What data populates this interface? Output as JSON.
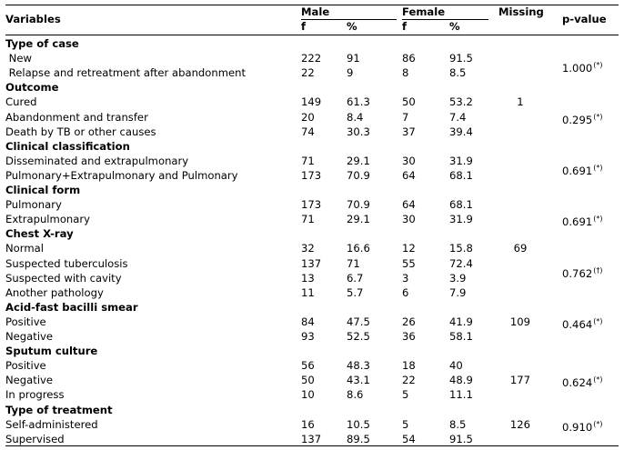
{
  "header": {
    "variables": "Variables",
    "male": "Male",
    "female": "Female",
    "missing": "Missing",
    "pvalue": "p-value",
    "f": "f",
    "pct": "%"
  },
  "rows": [
    {
      "label": "Type of case",
      "section": true
    },
    {
      "label": " New",
      "mf": "222",
      "mp": "91",
      "ff": "86",
      "fp": "91.5"
    },
    {
      "label": " Relapse and retreatment after abandonment",
      "mf": "22",
      "mp": "9",
      "ff": "8",
      "fp": "8.5"
    },
    {
      "label": "Outcome",
      "section": true
    },
    {
      "label": "Cured",
      "mf": "149",
      "mp": "61.3",
      "ff": "50",
      "fp": "53.2",
      "miss": "1"
    },
    {
      "label": "Abandonment and transfer",
      "mf": "20",
      "mp": "8.4",
      "ff": "7",
      "fp": "7.4"
    },
    {
      "label": "Death by TB or other causes",
      "mf": "74",
      "mp": "30.3",
      "ff": "37",
      "fp": "39.4"
    },
    {
      "label": "Clinical classification",
      "section": true
    },
    {
      "label": "Disseminated and extrapulmonary",
      "mf": "71",
      "mp": "29.1",
      "ff": "30",
      "fp": "31.9"
    },
    {
      "label": "Pulmonary+Extrapulmonary and Pulmonary",
      "mf": "173",
      "mp": "70.9",
      "ff": "64",
      "fp": "68.1"
    },
    {
      "label": "Clinical form",
      "section": true
    },
    {
      "label": "Pulmonary",
      "mf": "173",
      "mp": "70.9",
      "ff": "64",
      "fp": "68.1"
    },
    {
      "label": "Extrapulmonary",
      "mf": "71",
      "mp": "29.1",
      "ff": "30",
      "fp": "31.9"
    },
    {
      "label": "Chest X-ray",
      "section": true
    },
    {
      "label": "Normal",
      "mf": "32",
      "mp": "16.6",
      "ff": "12",
      "fp": "15.8",
      "miss": "69"
    },
    {
      "label": "Suspected tuberculosis",
      "mf": "137",
      "mp": "71",
      "ff": "55",
      "fp": "72.4"
    },
    {
      "label": "Suspected with cavity",
      "mf": "13",
      "mp": "6.7",
      "ff": "3",
      "fp": "3.9"
    },
    {
      "label": "Another pathology",
      "mf": "11",
      "mp": "5.7",
      "ff": "6",
      "fp": "7.9"
    },
    {
      "label": "Acid-fast bacilli smear",
      "section": true
    },
    {
      "label": "Positive",
      "mf": "84",
      "mp": "47.5",
      "ff": "26",
      "fp": "41.9",
      "miss": "109"
    },
    {
      "label": "Negative",
      "mf": "93",
      "mp": "52.5",
      "ff": "36",
      "fp": "58.1"
    },
    {
      "label": "Sputum culture",
      "section": true
    },
    {
      "label": "Positive",
      "mf": "56",
      "mp": "48.3",
      "ff": "18",
      "fp": "40"
    },
    {
      "label": "Negative",
      "mf": "50",
      "mp": "43.1",
      "ff": "22",
      "fp": "48.9",
      "miss": "177"
    },
    {
      "label": "In progress",
      "mf": "10",
      "mp": "8.6",
      "ff": "5",
      "fp": "11.1"
    },
    {
      "label": "Type of treatment",
      "section": true
    },
    {
      "label": "Self-administered",
      "mf": "16",
      "mp": "10.5",
      "ff": "5",
      "fp": "8.5",
      "miss": "126"
    },
    {
      "label": "Supervised",
      "mf": "137",
      "mp": "89.5",
      "ff": "54",
      "fp": "91.5"
    }
  ],
  "pvalues": [
    {
      "row": 1.5,
      "value": "1.000",
      "mark": "(*)"
    },
    {
      "row": 5,
      "value": "0.295",
      "mark": "(*)"
    },
    {
      "row": 8.5,
      "value": "0.691",
      "mark": "(*)"
    },
    {
      "row": 12,
      "value": "0.691",
      "mark": "(*)"
    },
    {
      "row": 15.5,
      "value": "0.762",
      "mark": "(†)"
    },
    {
      "row": 19,
      "value": "0.464",
      "mark": "(*)"
    },
    {
      "row": 23,
      "value": "0.624",
      "mark": "(*)"
    },
    {
      "row": 26,
      "value": "0.910",
      "mark": "(*)"
    }
  ]
}
